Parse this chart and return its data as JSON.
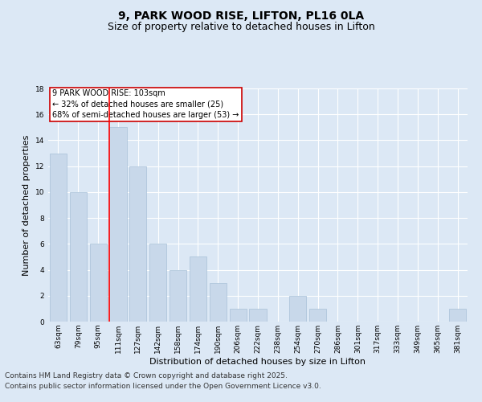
{
  "title1": "9, PARK WOOD RISE, LIFTON, PL16 0LA",
  "title2": "Size of property relative to detached houses in Lifton",
  "xlabel": "Distribution of detached houses by size in Lifton",
  "ylabel": "Number of detached properties",
  "categories": [
    "63sqm",
    "79sqm",
    "95sqm",
    "111sqm",
    "127sqm",
    "142sqm",
    "158sqm",
    "174sqm",
    "190sqm",
    "206sqm",
    "222sqm",
    "238sqm",
    "254sqm",
    "270sqm",
    "286sqm",
    "301sqm",
    "317sqm",
    "333sqm",
    "349sqm",
    "365sqm",
    "381sqm"
  ],
  "values": [
    13,
    10,
    6,
    15,
    12,
    6,
    4,
    5,
    3,
    1,
    1,
    0,
    2,
    1,
    0,
    0,
    0,
    0,
    0,
    0,
    1
  ],
  "bar_color": "#c8d8ea",
  "bar_edgecolor": "#a8c0d8",
  "redline_x": 2.57,
  "annotation_text": "9 PARK WOOD RISE: 103sqm\n← 32% of detached houses are smaller (25)\n68% of semi-detached houses are larger (53) →",
  "annotation_box_facecolor": "#ffffff",
  "annotation_box_edgecolor": "#cc0000",
  "ylim": [
    0,
    18
  ],
  "yticks": [
    0,
    2,
    4,
    6,
    8,
    10,
    12,
    14,
    16,
    18
  ],
  "footer1": "Contains HM Land Registry data © Crown copyright and database right 2025.",
  "footer2": "Contains public sector information licensed under the Open Government Licence v3.0.",
  "background_color": "#dce8f5",
  "grid_color": "#ffffff",
  "title_fontsize": 10,
  "subtitle_fontsize": 9,
  "axis_label_fontsize": 8,
  "tick_fontsize": 6.5,
  "annotation_fontsize": 7,
  "footer_fontsize": 6.5
}
